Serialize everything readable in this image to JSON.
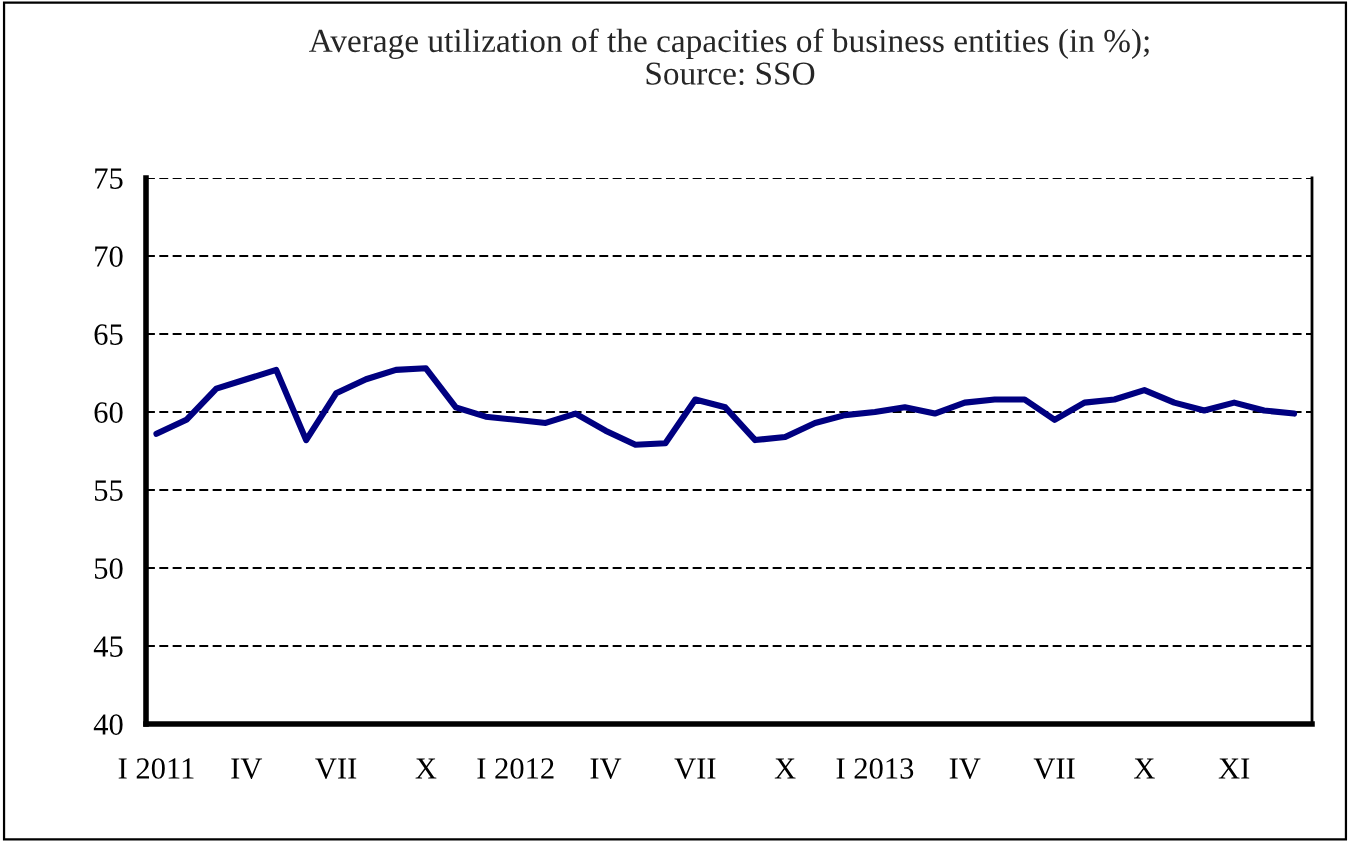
{
  "chart_data": {
    "type": "line",
    "title": "Average utilization of the capacities of business entities (in %);\nSource: SSO",
    "categories": [
      "I 2011",
      null,
      null,
      "IV",
      null,
      null,
      "VII",
      null,
      null,
      "X",
      null,
      null,
      "I 2012",
      null,
      null,
      "IV",
      null,
      null,
      "VII",
      null,
      null,
      "X",
      null,
      null,
      "I 2013",
      null,
      null,
      "IV",
      null,
      null,
      "VII",
      null,
      null,
      "X",
      null,
      null,
      "XI",
      null,
      null
    ],
    "series": [
      {
        "color": "#000080",
        "values": [
          58.6,
          59.5,
          61.5,
          62.1,
          62.7,
          58.2,
          61.2,
          62.1,
          62.7,
          62.8,
          60.3,
          59.7,
          59.5,
          59.3,
          59.9,
          58.8,
          57.9,
          58.0,
          60.8,
          60.3,
          58.2,
          58.4,
          59.3,
          59.8,
          60.0,
          60.3,
          59.9,
          60.6,
          60.8,
          60.8,
          59.5,
          60.6,
          60.8,
          61.4,
          60.6,
          60.1,
          60.6,
          60.1,
          59.9
        ]
      }
    ],
    "ylim": [
      40,
      75
    ],
    "yticks": [
      40,
      45,
      50,
      55,
      60,
      65,
      70,
      75
    ],
    "grid": "y",
    "legend": false,
    "marker": "none",
    "line_style": "solid"
  }
}
